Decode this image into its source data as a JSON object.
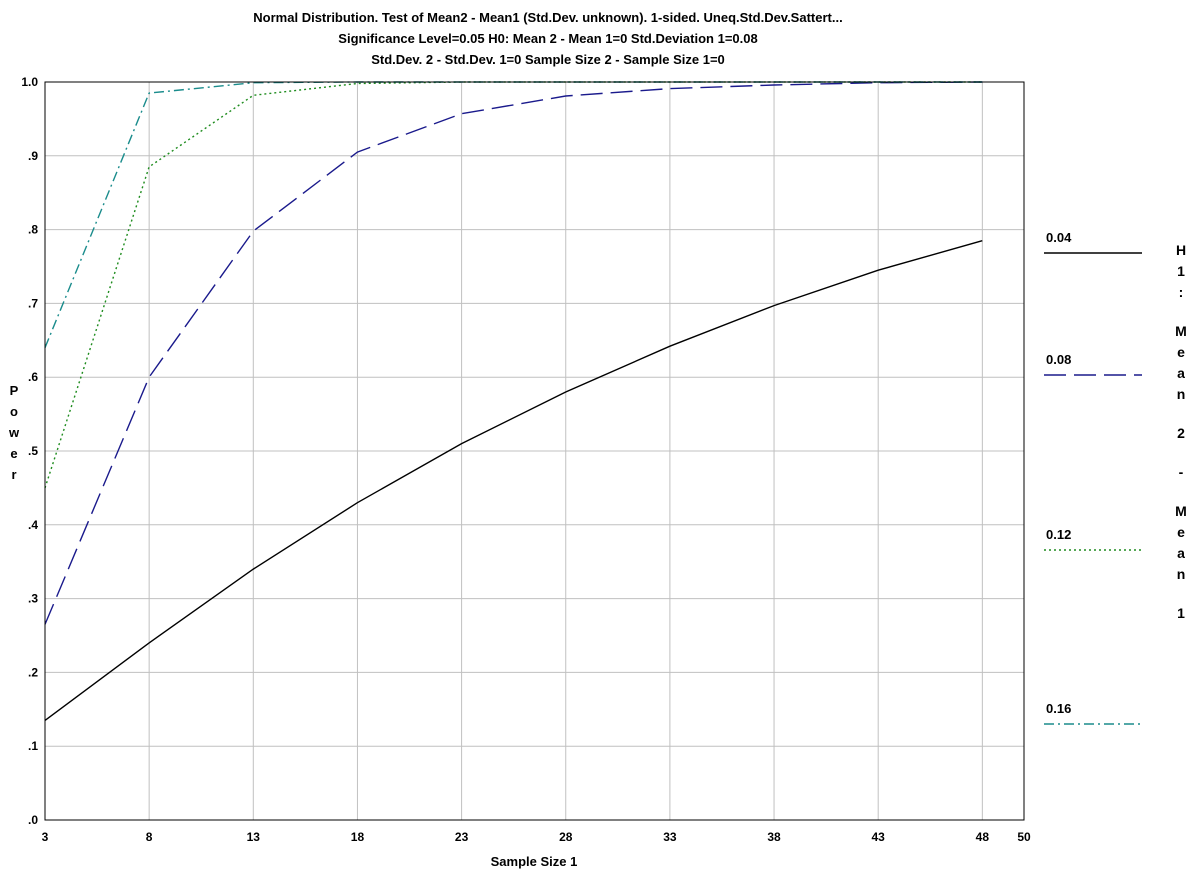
{
  "chart_data": {
    "type": "line",
    "title_lines": [
      "Normal Distribution. Test of Mean2 - Mean1 (Std.Dev. unknown). 1-sided. Uneq.Std.Dev.Sattert...",
      "Significance Level=0.05    H0: Mean 2 - Mean 1=0    Std.Deviation 1=0.08",
      "Std.Dev. 2 - Std.Dev. 1=0    Sample Size 2 - Sample Size 1=0"
    ],
    "xlabel": "Sample Size 1",
    "ylabel": "Power",
    "xlim": [
      3,
      50
    ],
    "ylim": [
      0,
      1
    ],
    "x_ticks": [
      3,
      8,
      13,
      18,
      23,
      28,
      33,
      38,
      43,
      48,
      50
    ],
    "x_tick_labels": [
      "3",
      "8",
      "13",
      "18",
      "23",
      "28",
      "33",
      "38",
      "43",
      "48",
      "50"
    ],
    "y_ticks": [
      0,
      0.1,
      0.2,
      0.3,
      0.4,
      0.5,
      0.6,
      0.7,
      0.8,
      0.9,
      1.0
    ],
    "y_tick_labels": [
      ".0",
      ".1",
      ".2",
      ".3",
      ".4",
      ".5",
      ".6",
      ".7",
      ".8",
      ".9",
      "1.0"
    ],
    "grid": true,
    "legend_title": "H1: Mean 2 - Mean 1",
    "legend_placement": "right",
    "series": [
      {
        "name": "0.04",
        "color": "#000000",
        "dash": "solid",
        "x": [
          3,
          8,
          13,
          18,
          23,
          28,
          33,
          38,
          43,
          48
        ],
        "y": [
          0.135,
          0.24,
          0.34,
          0.43,
          0.51,
          0.58,
          0.642,
          0.697,
          0.745,
          0.785
        ]
      },
      {
        "name": "0.08",
        "color": "#1a1a8c",
        "dash": "long-dash",
        "x": [
          3,
          8,
          13,
          18,
          23,
          28,
          33,
          38,
          43,
          48
        ],
        "y": [
          0.265,
          0.6,
          0.798,
          0.905,
          0.957,
          0.981,
          0.991,
          0.996,
          0.999,
          1.0
        ]
      },
      {
        "name": "0.12",
        "color": "#1e8c1e",
        "dash": "dotted",
        "x": [
          3,
          8,
          13,
          18,
          23,
          28,
          33,
          38,
          43,
          48
        ],
        "y": [
          0.45,
          0.885,
          0.982,
          0.998,
          1.0,
          1.0,
          1.0,
          1.0,
          1.0,
          1.0
        ]
      },
      {
        "name": "0.16",
        "color": "#1a8c8c",
        "dash": "dash-dot",
        "x": [
          3,
          8,
          13,
          18,
          23,
          28,
          33,
          38,
          43,
          48
        ],
        "y": [
          0.64,
          0.985,
          0.999,
          1.0,
          1.0,
          1.0,
          1.0,
          1.0,
          1.0,
          1.0
        ]
      }
    ]
  }
}
